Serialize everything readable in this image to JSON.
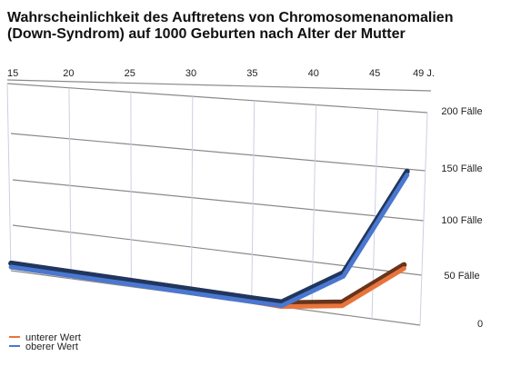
{
  "chart_data": {
    "type": "line",
    "title_line1": "Wahrscheinlichkeit des Auftretens von Chromosomenanomalien",
    "title_line2": "(Down-Syndrom) auf 1000 Geburten nach Alter der Mutter",
    "x_ticks": [
      "15",
      "20",
      "25",
      "30",
      "35",
      "40",
      "45",
      "49 J."
    ],
    "x_tick_values": [
      15,
      20,
      25,
      30,
      35,
      40,
      45,
      49
    ],
    "y_ticks": [
      "0",
      "50 Fälle",
      "100 Fälle",
      "150 Fälle",
      "200 Fälle"
    ],
    "y_tick_values": [
      0,
      50,
      100,
      150,
      200
    ],
    "ylim": [
      0,
      200
    ],
    "xlim": [
      15,
      49
    ],
    "x": [
      15,
      35,
      37.5,
      42.5,
      47.5
    ],
    "series": [
      {
        "name": "unterer Wert",
        "color": "#e8743b",
        "values": [
          5,
          2,
          1,
          10,
          55
        ]
      },
      {
        "name": "oberer Wert",
        "color": "#4a78d0",
        "values": [
          5,
          2,
          2,
          40,
          145
        ]
      }
    ],
    "grid": true,
    "legend_position": "bottom-left"
  }
}
